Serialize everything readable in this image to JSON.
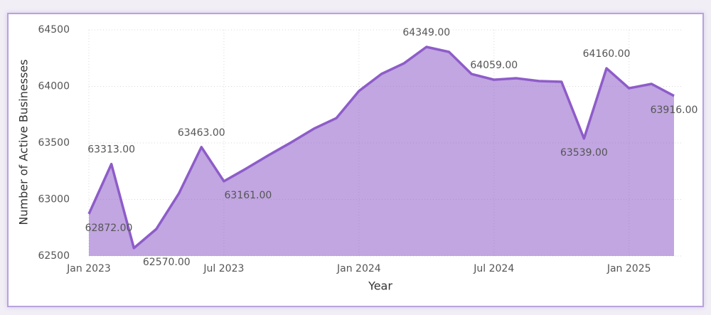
{
  "chart_data": {
    "type": "area",
    "x_label": "Year",
    "y_label": "Number of Active Businesses",
    "categories": [
      "Jan 2023",
      null,
      null,
      null,
      null,
      null,
      "Jul 2023",
      null,
      null,
      null,
      null,
      null,
      "Jan 2024",
      null,
      null,
      null,
      null,
      null,
      "Jul 2024",
      null,
      null,
      null,
      null,
      null,
      "Jan 2025",
      null,
      null
    ],
    "series": [
      {
        "name": "Active Businesses",
        "color": "#8e5cc9",
        "values": [
          62872,
          63313,
          62570,
          62739,
          63053,
          63463,
          63161,
          63274,
          63393,
          63506,
          63626,
          63720,
          63959,
          64110,
          64204,
          64349,
          64305,
          64110,
          64059,
          64072,
          64047,
          64041,
          63539,
          64160,
          63984,
          64022,
          63916
        ],
        "value_labels": [
          "62872.00",
          "63313.00",
          "62570.00",
          null,
          null,
          "63463.00",
          "63161.00",
          null,
          null,
          null,
          null,
          null,
          null,
          null,
          null,
          "64349.00",
          null,
          null,
          "64059.00",
          null,
          null,
          null,
          "63539.00",
          "64160.00",
          null,
          null,
          "63916.00"
        ]
      }
    ],
    "ylim": [
      62500,
      64500
    ],
    "yticks": [
      62500,
      63000,
      63500,
      64000,
      64500
    ],
    "grid": true
  }
}
